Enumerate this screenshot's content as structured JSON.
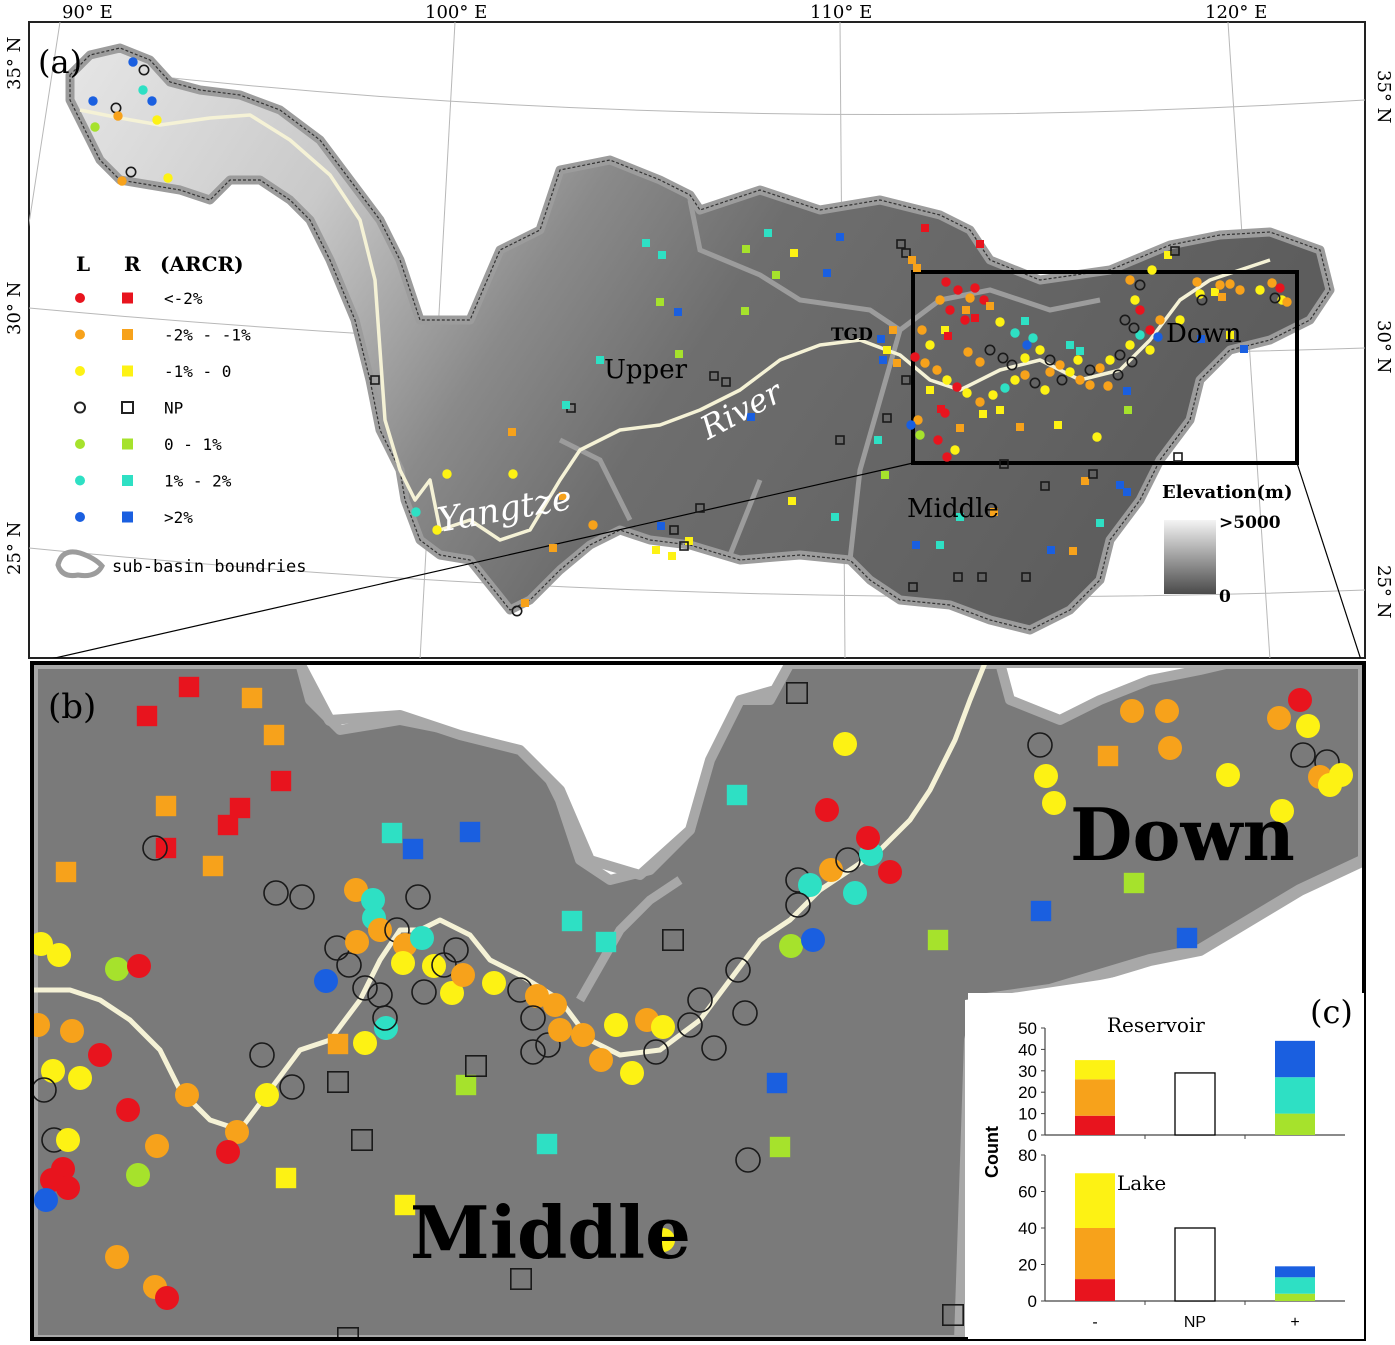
{
  "panel_a": {
    "label": "(a)",
    "lon_labels": [
      "90° E",
      "100° E",
      "110° E",
      "120° E"
    ],
    "lat_labels_left": [
      "35° N",
      "30° N",
      "25° N"
    ],
    "lat_labels_right": [
      "35° N",
      "30° N",
      "25° N"
    ],
    "region_labels": {
      "upper": "Upper",
      "middle": "Middle",
      "down": "Down",
      "tgd": "TGD"
    },
    "river_words": [
      "Yangtze",
      "River"
    ],
    "legend": {
      "header_l": "L",
      "header_r": "R",
      "header_title": "(ARCR)",
      "entries": [
        {
          "label": "<-2%",
          "color": "#e8141e"
        },
        {
          "label": "-2% - -1%",
          "color": "#f7a21b"
        },
        {
          "label": "-1% - 0",
          "color": "#fdf214"
        },
        {
          "label": "NP",
          "color": "none"
        },
        {
          "label": "0 - 1%",
          "color": "#a6e22c"
        },
        {
          "label": "1% - 2%",
          "color": "#2ee0c4"
        },
        {
          "label": ">2%",
          "color": "#1a5fe0"
        }
      ],
      "boundary_label": "sub-basin boundries"
    },
    "elevation": {
      "title": "Elevation(m)",
      "max_label": ">5000",
      "min_label": "0"
    }
  },
  "panel_b": {
    "label": "(b)",
    "region_labels": {
      "middle": "Middle",
      "down": "Down"
    }
  },
  "panel_c": {
    "label": "(c)",
    "ylabel": "Count",
    "x_categories": [
      "-",
      "NP",
      "+"
    ],
    "colors": {
      "lt_neg2": "#e8141e",
      "neg2_neg1": "#f7a21b",
      "neg1_0": "#fdf214",
      "p0_1": "#a6e22c",
      "p1_2": "#2ee0c4",
      "gt2": "#1a5fe0"
    }
  },
  "chart_data": [
    {
      "type": "bar",
      "title": "Reservoir",
      "categories": [
        "-",
        "NP",
        "+"
      ],
      "ylim": [
        0,
        50
      ],
      "yticks": [
        0,
        10,
        20,
        30,
        40,
        50
      ],
      "stacks": [
        [
          {
            "value": 9,
            "color": "#e8141e"
          },
          {
            "value": 17,
            "color": "#f7a21b"
          },
          {
            "value": 9,
            "color": "#fdf214"
          }
        ],
        [
          {
            "value": 29,
            "color": "#ffffff"
          }
        ],
        [
          {
            "value": 10,
            "color": "#a6e22c"
          },
          {
            "value": 17,
            "color": "#2ee0c4"
          },
          {
            "value": 17,
            "color": "#1a5fe0"
          }
        ]
      ]
    },
    {
      "type": "bar",
      "title": "Lake",
      "categories": [
        "-",
        "NP",
        "+"
      ],
      "ylim": [
        0,
        80
      ],
      "yticks": [
        0,
        20,
        40,
        60,
        80
      ],
      "stacks": [
        [
          {
            "value": 12,
            "color": "#e8141e"
          },
          {
            "value": 28,
            "color": "#f7a21b"
          },
          {
            "value": 30,
            "color": "#fdf214"
          }
        ],
        [
          {
            "value": 40,
            "color": "#ffffff"
          }
        ],
        [
          {
            "value": 4,
            "color": "#a6e22c"
          },
          {
            "value": 9,
            "color": "#2ee0c4"
          },
          {
            "value": 6,
            "color": "#1a5fe0"
          }
        ]
      ]
    }
  ]
}
